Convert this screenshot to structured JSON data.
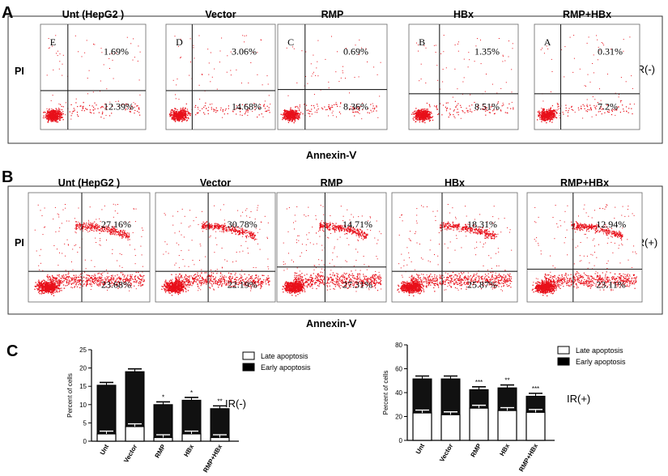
{
  "panel_labels": {
    "a": "A",
    "b": "B",
    "c": "C"
  },
  "axis_labels": {
    "pi": "PI",
    "annexin": "Annexin-Ⅴ"
  },
  "condition_labels": {
    "minus": "IR(-)",
    "plus": "IR(+)"
  },
  "flow_titles": [
    "Unt (HepG2 )",
    "Vector",
    "RMP",
    "HBx",
    "RMP+HBx"
  ],
  "row_a_letters": [
    "E",
    "D",
    "C",
    "B",
    "A"
  ],
  "row_a_upper": [
    "1.69%",
    "3.06%",
    "0.69%",
    "1.35%",
    "0.31%"
  ],
  "row_a_lower": [
    "12.39%",
    "14.68%",
    "8.36%",
    "8.51%",
    "7.2%"
  ],
  "row_b_upper": [
    "27.16%",
    "30.78%",
    "14.71%",
    "18.31%",
    "12.94%"
  ],
  "row_b_lower": [
    "23.68%",
    "22.19%",
    "27.31%",
    "25.87%",
    "23.11%"
  ],
  "colors": {
    "dots": "#e8101a",
    "early": "#111111",
    "late": "#ffffff"
  },
  "chart_data": [
    {
      "type": "bar",
      "stacked": true,
      "condition": "IR(-)",
      "categories": [
        "Unt",
        "Vector",
        "RMP",
        "HBx",
        "RMP+HBx"
      ],
      "series": [
        {
          "name": "Late apoptosis",
          "values": [
            2,
            4,
            1,
            2,
            1
          ]
        },
        {
          "name": "Early apoptosis",
          "values": [
            13.3,
            15,
            9,
            9.2,
            7.9
          ]
        }
      ],
      "totals": [
        15.3,
        19,
        10,
        11.2,
        8.9
      ],
      "significance": [
        "",
        "",
        "*",
        "*",
        "**"
      ],
      "ylabel": "Percent of cells",
      "ylim": [
        0,
        25
      ],
      "yticks": [
        0,
        5,
        10,
        15,
        20,
        25
      ],
      "legend": [
        "Late apoptosis",
        "Early apoptosis"
      ]
    },
    {
      "type": "bar",
      "stacked": true,
      "condition": "IR(+)",
      "categories": [
        "Unt",
        "Vector",
        "RMP",
        "HBx",
        "RMP+HBx"
      ],
      "series": [
        {
          "name": "Late apoptosis",
          "values": [
            23,
            21.5,
            27,
            25,
            23.5
          ]
        },
        {
          "name": "Early apoptosis",
          "values": [
            28.5,
            30,
            15.5,
            19,
            13.5
          ]
        }
      ],
      "totals": [
        51.5,
        51.5,
        42.5,
        44,
        37
      ],
      "significance": [
        "",
        "",
        "***",
        "**",
        "***"
      ],
      "ylabel": "Percent of cells",
      "ylim": [
        0,
        80
      ],
      "yticks": [
        0,
        20,
        40,
        60,
        80
      ],
      "legend": [
        "Late apoptosis",
        "Early apoptosis"
      ]
    }
  ]
}
